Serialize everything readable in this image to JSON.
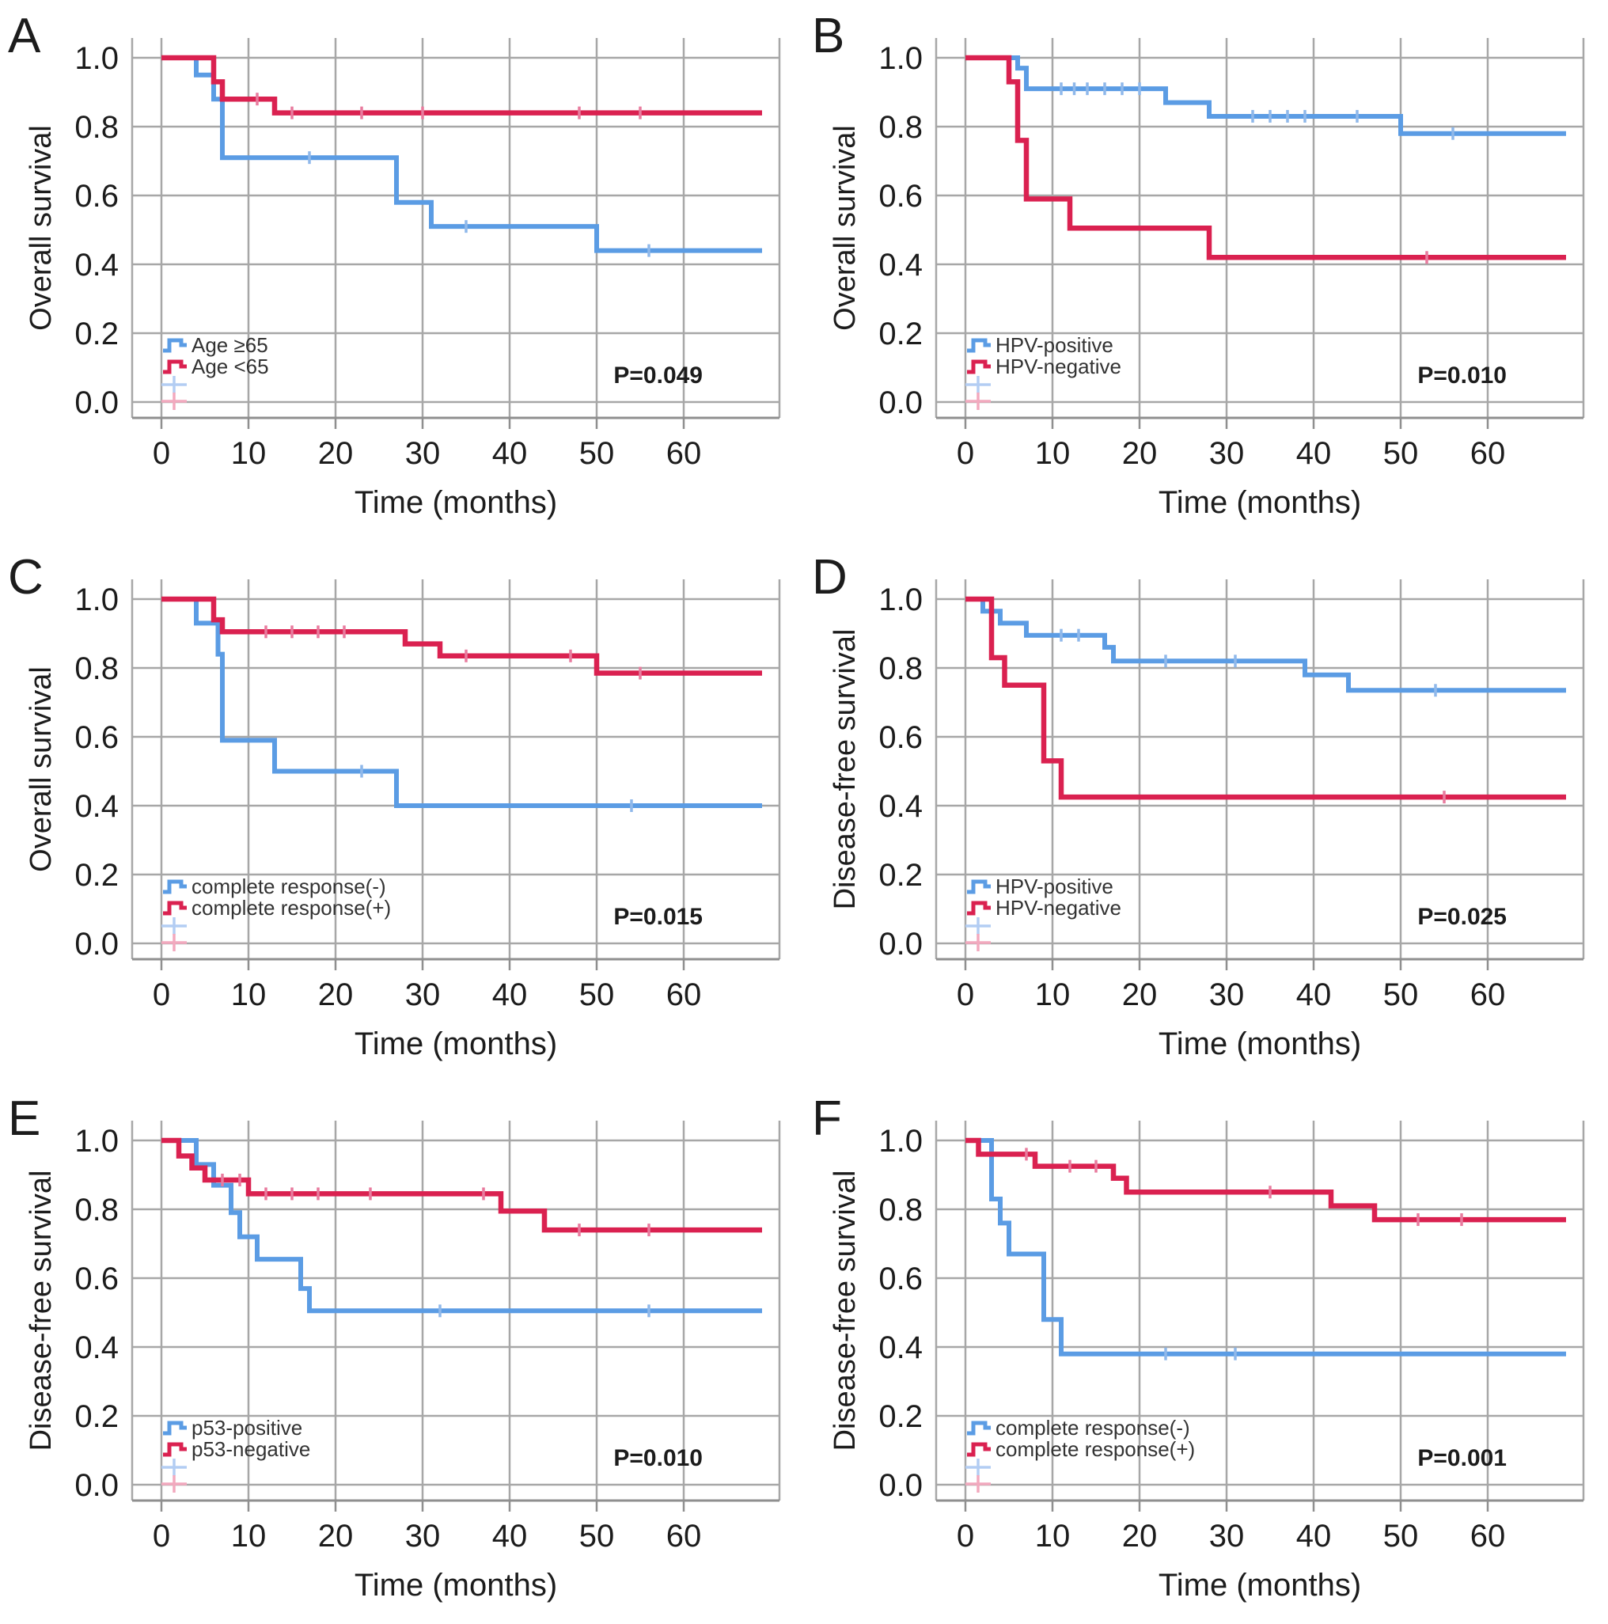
{
  "layout": {
    "colors": {
      "background": "#ffffff",
      "grid": "#a7a7a7",
      "axis": "#8f8f8f",
      "text": "#1c1c1c",
      "legend_text": "#333333",
      "blue": "#5b9ce4",
      "red": "#da2150",
      "blue_censor": "#8fb8ea",
      "red_censor": "#e87b9e",
      "plus_blue": "#b3cdf3",
      "plus_red": "#f2a9be"
    }
  },
  "chart_data": [
    {
      "letter": "A",
      "type": "line",
      "subtype": "kaplan_meier_step",
      "y_axis_title": "Overall survival",
      "x_axis_title": "Time (months)",
      "p_value": "P=0.049",
      "x_range": [
        0,
        63
      ],
      "y_range": [
        0.0,
        1.0
      ],
      "x_tick_values": [
        0,
        10,
        20,
        30,
        40,
        50,
        60
      ],
      "x_tick_labels": [
        "0",
        "10",
        "20",
        "30",
        "40",
        "50",
        "60"
      ],
      "y_tick_values": [
        1.0,
        0.8,
        0.6,
        0.4,
        0.2,
        0.0
      ],
      "y_tick_labels": [
        "1.0",
        "0.8",
        "0.6",
        "0.4",
        "0.2",
        "0.0"
      ],
      "series": [
        {
          "name": "Age ≥65",
          "color_key": "blue",
          "censor_color_key": "blue_censor",
          "start": 1.0,
          "end": 69,
          "drops": [
            [
              4,
              0.95
            ],
            [
              6,
              0.88
            ],
            [
              7,
              0.71
            ],
            [
              27,
              0.58
            ],
            [
              31,
              0.51
            ],
            [
              50,
              0.44
            ]
          ],
          "censors": [
            [
              17,
              0.71
            ],
            [
              35,
              0.51
            ],
            [
              56,
              0.44
            ]
          ]
        },
        {
          "name": "Age <65",
          "color_key": "red",
          "censor_color_key": "red_censor",
          "start": 1.0,
          "end": 69,
          "drops": [
            [
              6,
              0.93
            ],
            [
              7,
              0.88
            ],
            [
              13,
              0.84
            ]
          ],
          "censors": [
            [
              11,
              0.88
            ],
            [
              15,
              0.84
            ],
            [
              23,
              0.84
            ],
            [
              30,
              0.84
            ],
            [
              48,
              0.84
            ],
            [
              55,
              0.84
            ]
          ]
        }
      ]
    },
    {
      "letter": "B",
      "type": "line",
      "subtype": "kaplan_meier_step",
      "y_axis_title": "Overall survival",
      "x_axis_title": "Time (months)",
      "p_value": "P=0.010",
      "x_range": [
        0,
        63
      ],
      "y_range": [
        0.0,
        1.0
      ],
      "x_tick_values": [
        0,
        10,
        20,
        30,
        40,
        50,
        60
      ],
      "x_tick_labels": [
        "0",
        "10",
        "20",
        "30",
        "40",
        "50",
        "60"
      ],
      "y_tick_values": [
        1.0,
        0.8,
        0.6,
        0.4,
        0.2,
        0.0
      ],
      "y_tick_labels": [
        "1.0",
        "0.8",
        "0.6",
        "0.4",
        "0.2",
        "0.0"
      ],
      "series": [
        {
          "name": "HPV-positive",
          "color_key": "blue",
          "censor_color_key": "blue_censor",
          "start": 1.0,
          "end": 69,
          "drops": [
            [
              6,
              0.97
            ],
            [
              7,
              0.91
            ],
            [
              23,
              0.87
            ],
            [
              28,
              0.83
            ],
            [
              50,
              0.78
            ]
          ],
          "censors": [
            [
              11,
              0.91
            ],
            [
              12.5,
              0.91
            ],
            [
              14,
              0.91
            ],
            [
              16,
              0.91
            ],
            [
              18,
              0.91
            ],
            [
              20,
              0.91
            ],
            [
              33,
              0.83
            ],
            [
              35,
              0.83
            ],
            [
              37,
              0.83
            ],
            [
              39,
              0.83
            ],
            [
              45,
              0.83
            ],
            [
              56,
              0.78
            ]
          ]
        },
        {
          "name": "HPV-negative",
          "color_key": "red",
          "censor_color_key": "red_censor",
          "start": 1.0,
          "end": 69,
          "drops": [
            [
              5,
              0.93
            ],
            [
              6,
              0.76
            ],
            [
              7,
              0.59
            ],
            [
              12,
              0.505
            ],
            [
              28,
              0.42
            ]
          ],
          "censors": [
            [
              53,
              0.42
            ]
          ]
        }
      ]
    },
    {
      "letter": "C",
      "type": "line",
      "subtype": "kaplan_meier_step",
      "y_axis_title": "Overall survival",
      "x_axis_title": "Time (months)",
      "p_value": "P=0.015",
      "x_range": [
        0,
        63
      ],
      "y_range": [
        0.0,
        1.0
      ],
      "x_tick_values": [
        0,
        10,
        20,
        30,
        40,
        50,
        60
      ],
      "x_tick_labels": [
        "0",
        "10",
        "20",
        "30",
        "40",
        "50",
        "60"
      ],
      "y_tick_values": [
        1.0,
        0.8,
        0.6,
        0.4,
        0.2,
        0.0
      ],
      "y_tick_labels": [
        "1.0",
        "0.8",
        "0.6",
        "0.4",
        "0.2",
        "0.0"
      ],
      "series": [
        {
          "name": "complete response(-)",
          "color_key": "blue",
          "censor_color_key": "blue_censor",
          "start": 1.0,
          "end": 69,
          "drops": [
            [
              4,
              0.93
            ],
            [
              6.5,
              0.84
            ],
            [
              7,
              0.59
            ],
            [
              13,
              0.5
            ],
            [
              27,
              0.4
            ]
          ],
          "censors": [
            [
              23,
              0.5
            ],
            [
              54,
              0.4
            ]
          ]
        },
        {
          "name": "complete response(+)",
          "color_key": "red",
          "censor_color_key": "red_censor",
          "start": 1.0,
          "end": 69,
          "drops": [
            [
              6,
              0.94
            ],
            [
              7,
              0.905
            ],
            [
              28,
              0.87
            ],
            [
              32,
              0.835
            ],
            [
              50,
              0.785
            ]
          ],
          "censors": [
            [
              12,
              0.905
            ],
            [
              15,
              0.905
            ],
            [
              18,
              0.905
            ],
            [
              21,
              0.905
            ],
            [
              35,
              0.835
            ],
            [
              47,
              0.835
            ],
            [
              55,
              0.785
            ]
          ]
        }
      ]
    },
    {
      "letter": "D",
      "type": "line",
      "subtype": "kaplan_meier_step",
      "y_axis_title": "Disease-free survival",
      "x_axis_title": "Time (months)",
      "p_value": "P=0.025",
      "x_range": [
        0,
        63
      ],
      "y_range": [
        0.0,
        1.0
      ],
      "x_tick_values": [
        0,
        10,
        20,
        30,
        40,
        50,
        60
      ],
      "x_tick_labels": [
        "0",
        "10",
        "20",
        "30",
        "40",
        "50",
        "60"
      ],
      "y_tick_values": [
        1.0,
        0.8,
        0.6,
        0.4,
        0.2,
        0.0
      ],
      "y_tick_labels": [
        "1.0",
        "0.8",
        "0.6",
        "0.4",
        "0.2",
        "0.0"
      ],
      "series": [
        {
          "name": "HPV-positive",
          "color_key": "blue",
          "censor_color_key": "blue_censor",
          "start": 1.0,
          "end": 69,
          "drops": [
            [
              2,
              0.965
            ],
            [
              4,
              0.93
            ],
            [
              7,
              0.895
            ],
            [
              16,
              0.86
            ],
            [
              17,
              0.82
            ],
            [
              39,
              0.78
            ],
            [
              44,
              0.735
            ]
          ],
          "censors": [
            [
              3,
              0.965
            ],
            [
              11,
              0.895
            ],
            [
              13,
              0.895
            ],
            [
              23,
              0.82
            ],
            [
              31,
              0.82
            ],
            [
              54,
              0.735
            ]
          ]
        },
        {
          "name": "HPV-negative",
          "color_key": "red",
          "censor_color_key": "red_censor",
          "start": 1.0,
          "end": 69,
          "drops": [
            [
              3,
              0.83
            ],
            [
              4.5,
              0.75
            ],
            [
              9,
              0.53
            ],
            [
              11,
              0.425
            ]
          ],
          "censors": [
            [
              55,
              0.425
            ]
          ]
        }
      ]
    },
    {
      "letter": "E",
      "type": "line",
      "subtype": "kaplan_meier_step",
      "y_axis_title": "Disease-free survival",
      "x_axis_title": "Time (months)",
      "p_value": "P=0.010",
      "x_range": [
        0,
        63
      ],
      "y_range": [
        0.0,
        1.0
      ],
      "x_tick_values": [
        0,
        10,
        20,
        30,
        40,
        50,
        60
      ],
      "x_tick_labels": [
        "0",
        "10",
        "20",
        "30",
        "40",
        "50",
        "60"
      ],
      "y_tick_values": [
        1.0,
        0.8,
        0.6,
        0.4,
        0.2,
        0.0
      ],
      "y_tick_labels": [
        "1.0",
        "0.8",
        "0.6",
        "0.4",
        "0.2",
        "0.0"
      ],
      "series": [
        {
          "name": "p53-positive",
          "color_key": "blue",
          "censor_color_key": "blue_censor",
          "start": 1.0,
          "end": 69,
          "drops": [
            [
              4,
              0.93
            ],
            [
              6,
              0.87
            ],
            [
              8,
              0.79
            ],
            [
              9,
              0.72
            ],
            [
              11,
              0.655
            ],
            [
              16,
              0.57
            ],
            [
              17,
              0.505
            ]
          ],
          "censors": [
            [
              32,
              0.505
            ],
            [
              56,
              0.505
            ]
          ]
        },
        {
          "name": "p53-negative",
          "color_key": "red",
          "censor_color_key": "red_censor",
          "start": 1.0,
          "end": 69,
          "drops": [
            [
              2,
              0.955
            ],
            [
              3.5,
              0.92
            ],
            [
              5,
              0.885
            ],
            [
              10,
              0.845
            ],
            [
              39,
              0.795
            ],
            [
              44,
              0.74
            ]
          ],
          "censors": [
            [
              7,
              0.885
            ],
            [
              9,
              0.885
            ],
            [
              12,
              0.845
            ],
            [
              15,
              0.845
            ],
            [
              18,
              0.845
            ],
            [
              24,
              0.845
            ],
            [
              37,
              0.845
            ],
            [
              48,
              0.74
            ],
            [
              56,
              0.74
            ]
          ]
        }
      ]
    },
    {
      "letter": "F",
      "type": "line",
      "subtype": "kaplan_meier_step",
      "y_axis_title": "Disease-free survival",
      "x_axis_title": "Time (months)",
      "p_value": "P=0.001",
      "x_range": [
        0,
        63
      ],
      "y_range": [
        0.0,
        1.0
      ],
      "x_tick_values": [
        0,
        10,
        20,
        30,
        40,
        50,
        60
      ],
      "x_tick_labels": [
        "0",
        "10",
        "20",
        "30",
        "40",
        "50",
        "60"
      ],
      "y_tick_values": [
        1.0,
        0.8,
        0.6,
        0.4,
        0.2,
        0.0
      ],
      "y_tick_labels": [
        "1.0",
        "0.8",
        "0.6",
        "0.4",
        "0.2",
        "0.0"
      ],
      "series": [
        {
          "name": "complete response(-)",
          "color_key": "blue",
          "censor_color_key": "blue_censor",
          "start": 1.0,
          "end": 69,
          "drops": [
            [
              3,
              0.83
            ],
            [
              4,
              0.76
            ],
            [
              5,
              0.67
            ],
            [
              9,
              0.48
            ],
            [
              11,
              0.38
            ]
          ],
          "censors": [
            [
              23,
              0.38
            ],
            [
              31,
              0.38
            ]
          ]
        },
        {
          "name": "complete response(+)",
          "color_key": "red",
          "censor_color_key": "red_censor",
          "start": 1.0,
          "end": 69,
          "drops": [
            [
              1.5,
              0.96
            ],
            [
              8,
              0.925
            ],
            [
              17,
              0.89
            ],
            [
              18.5,
              0.85
            ],
            [
              42,
              0.81
            ],
            [
              47,
              0.77
            ]
          ],
          "censors": [
            [
              7,
              0.96
            ],
            [
              12,
              0.925
            ],
            [
              15,
              0.925
            ],
            [
              35,
              0.85
            ],
            [
              52,
              0.77
            ],
            [
              57,
              0.77
            ]
          ]
        }
      ]
    }
  ]
}
